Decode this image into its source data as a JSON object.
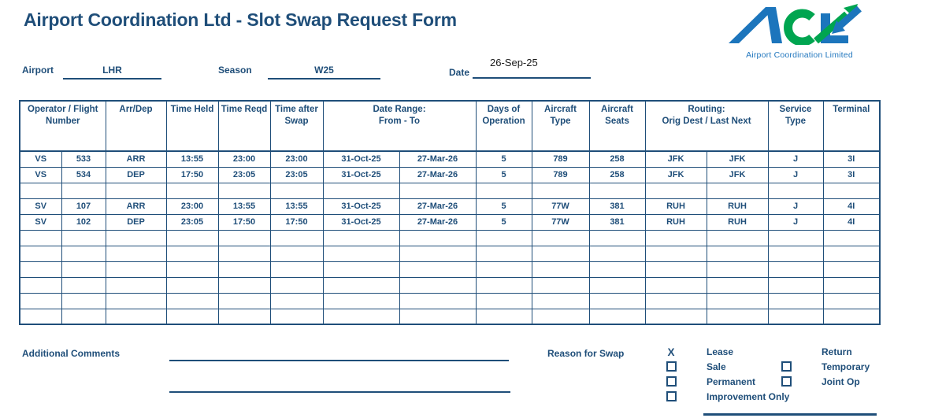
{
  "title": "Airport Coordination Ltd - Slot Swap Request Form",
  "logo": {
    "caption": "Airport Coordination Limited",
    "blue": "#1C75BC",
    "green": "#00A550"
  },
  "fields": {
    "airport_label": "Airport",
    "airport_value": "LHR",
    "season_label": "Season",
    "season_value": "W25",
    "date_label": "Date",
    "date_value": "26-Sep-25"
  },
  "table": {
    "headers": {
      "operator_flight_line1": "Operator / Flight",
      "operator_flight_line2": "Number",
      "arr_dep": "Arr/Dep",
      "time_held": "Time Held",
      "time_reqd": "Time Reqd",
      "time_after_line1": "Time after",
      "time_after_line2": "Swap",
      "date_range_line1": "Date Range:",
      "date_range_line2": "From - To",
      "days_line1": "Days of",
      "days_line2": "Operation",
      "aircraft_type_line1": "Aircraft",
      "aircraft_type_line2": "Type",
      "aircraft_seats_line1": "Aircraft",
      "aircraft_seats_line2": "Seats",
      "routing_line1": "Routing:",
      "routing_line2": "Orig Dest / Last Next",
      "service_line1": "Service",
      "service_line2": "Type",
      "terminal": "Terminal"
    },
    "rows": [
      [
        "VS",
        "533",
        "ARR",
        "13:55",
        "23:00",
        "23:00",
        "31-Oct-25",
        "27-Mar-26",
        "5",
        "789",
        "258",
        "JFK",
        "JFK",
        "J",
        "3I"
      ],
      [
        "VS",
        "534",
        "DEP",
        "17:50",
        "23:05",
        "23:05",
        "31-Oct-25",
        "27-Mar-26",
        "5",
        "789",
        "258",
        "JFK",
        "JFK",
        "J",
        "3I"
      ],
      [
        "",
        "",
        "",
        "",
        "",
        "",
        "",
        "",
        "",
        "",
        "",
        "",
        "",
        "",
        ""
      ],
      [
        "SV",
        "107",
        "ARR",
        "23:00",
        "13:55",
        "13:55",
        "31-Oct-25",
        "27-Mar-26",
        "5",
        "77W",
        "381",
        "RUH",
        "RUH",
        "J",
        "4I"
      ],
      [
        "SV",
        "102",
        "DEP",
        "23:05",
        "17:50",
        "17:50",
        "31-Oct-25",
        "27-Mar-26",
        "5",
        "77W",
        "381",
        "RUH",
        "RUH",
        "J",
        "4I"
      ],
      [
        "",
        "",
        "",
        "",
        "",
        "",
        "",
        "",
        "",
        "",
        "",
        "",
        "",
        "",
        ""
      ],
      [
        "",
        "",
        "",
        "",
        "",
        "",
        "",
        "",
        "",
        "",
        "",
        "",
        "",
        "",
        ""
      ],
      [
        "",
        "",
        "",
        "",
        "",
        "",
        "",
        "",
        "",
        "",
        "",
        "",
        "",
        "",
        ""
      ],
      [
        "",
        "",
        "",
        "",
        "",
        "",
        "",
        "",
        "",
        "",
        "",
        "",
        "",
        "",
        ""
      ],
      [
        "",
        "",
        "",
        "",
        "",
        "",
        "",
        "",
        "",
        "",
        "",
        "",
        "",
        "",
        ""
      ],
      [
        "",
        "",
        "",
        "",
        "",
        "",
        "",
        "",
        "",
        "",
        "",
        "",
        "",
        "",
        ""
      ]
    ]
  },
  "footer": {
    "comments_label": "Additional Comments",
    "reason_label": "Reason for Swap",
    "selected_marker": "X",
    "options": [
      {
        "label": "Lease"
      },
      {
        "label": "Sale"
      },
      {
        "label": "Permanent"
      },
      {
        "label": "Improvement Only"
      },
      {
        "label": "Return"
      },
      {
        "label": "Temporary"
      },
      {
        "label": "Joint Op"
      }
    ]
  },
  "colors": {
    "form_blue": "#1F4E79",
    "logo_blue": "#1C75BC",
    "logo_green": "#00A550",
    "date_text": "#1a1a1a"
  }
}
